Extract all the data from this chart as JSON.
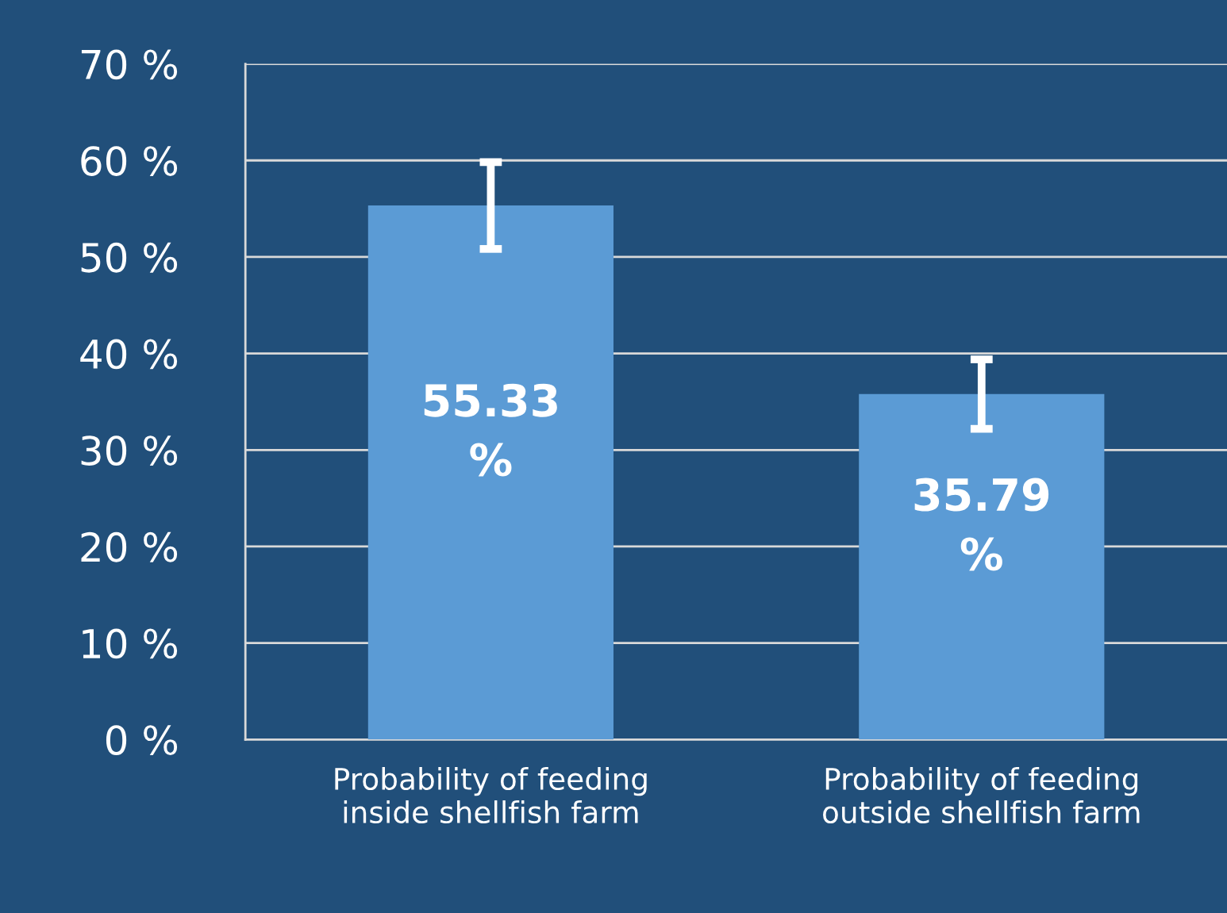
{
  "chart_data": {
    "type": "bar",
    "categories": [
      "Probability of feeding\ninside shellfish farm",
      "Probability of feeding\noutside shellfish farm"
    ],
    "values": [
      55.33,
      35.79
    ],
    "errors": [
      4.5,
      3.6
    ],
    "value_labels": [
      "55.33\n%",
      "35.79\n%"
    ],
    "color": "#5b9bd5",
    "ylim": [
      0,
      70
    ],
    "yticks": [
      {
        "value": 0,
        "label": "0 %"
      },
      {
        "value": 10,
        "label": "10 %"
      },
      {
        "value": 20,
        "label": "20 %"
      },
      {
        "value": 30,
        "label": "30 %"
      },
      {
        "value": 40,
        "label": "40 %"
      },
      {
        "value": 50,
        "label": "50 %"
      },
      {
        "value": 60,
        "label": "60 %"
      },
      {
        "value": 70,
        "label": "70 %"
      }
    ],
    "grid": "y"
  }
}
